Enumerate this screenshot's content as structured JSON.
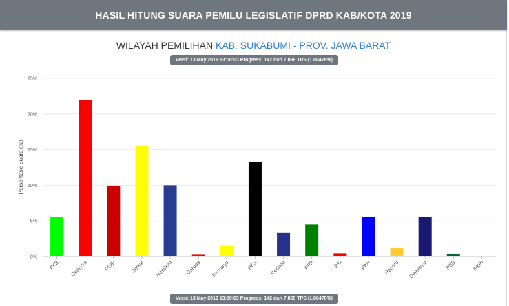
{
  "header": {
    "title": "HASIL HITUNG SUARA PEMILU LEGISLATIF DPRD KAB/KOTA 2019"
  },
  "subtitle": {
    "prefix": "WILAYAH PEMILIHAN",
    "region": "KAB. SUKABUMI - PROV. JAWA BARAT"
  },
  "version_badge": "Versi: 13 May 2019 13:00:03 Progress: 142 dari 7.868 TPS (1.80478%)",
  "chart_data": {
    "type": "bar",
    "title": "",
    "xlabel": "",
    "ylabel": "Persentase Suara (%)",
    "ylim": [
      0,
      25
    ],
    "yticks": [
      0,
      5,
      10,
      15,
      20,
      25
    ],
    "ytick_labels": [
      "0%",
      "5%",
      "10%",
      "15%",
      "20%",
      "25%"
    ],
    "grid": true,
    "categories": [
      "PKB",
      "Gerindra",
      "PDIP",
      "Golkar",
      "NasDem",
      "Garuda",
      "Berkarya",
      "PKS",
      "Perindo",
      "PPP",
      "PSI",
      "PAN",
      "Hanura",
      "Demokrat",
      "PBB",
      "PKPI"
    ],
    "values": [
      5.5,
      22.0,
      9.9,
      15.5,
      10.0,
      0.25,
      1.5,
      13.3,
      3.3,
      4.5,
      0.45,
      5.6,
      1.25,
      5.6,
      0.3,
      0.08
    ],
    "colors": [
      "#00ff00",
      "#ff0000",
      "#cc0000",
      "#ffff00",
      "#283d8f",
      "#ff0000",
      "#ffff00",
      "#000000",
      "#28318a",
      "#008000",
      "#ff0000",
      "#0000ff",
      "#ffcc33",
      "#191970",
      "#006633",
      "#ff3333"
    ]
  }
}
